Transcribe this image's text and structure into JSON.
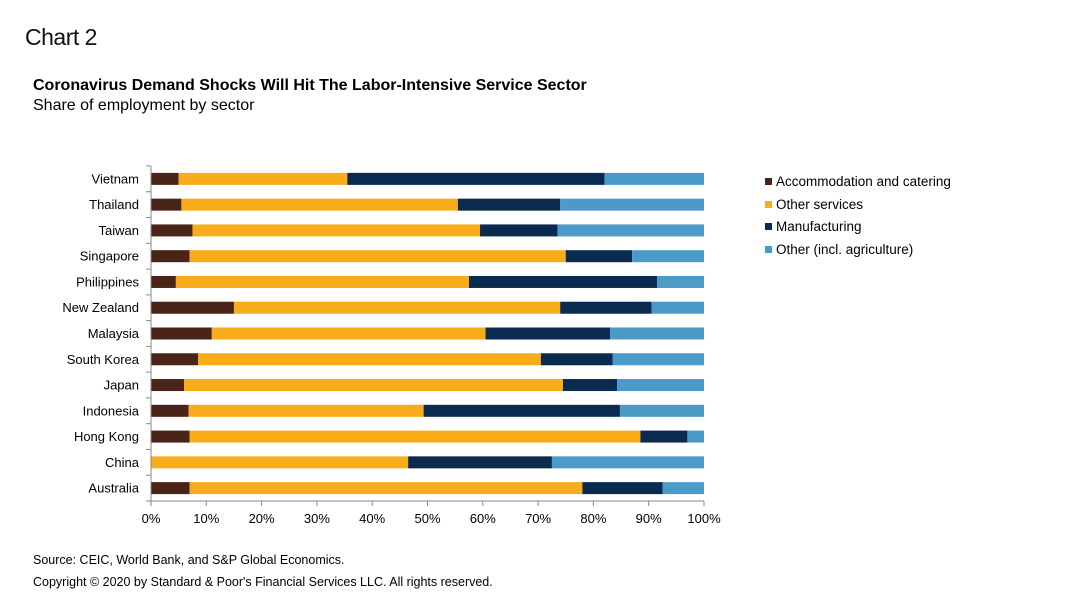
{
  "header": {
    "chart_label": "Chart 2",
    "title": "Coronavirus Demand Shocks Will Hit The Labor-Intensive Service Sector",
    "subtitle": "Share of employment by sector"
  },
  "footer": {
    "source": "Source: CEIC, World Bank, and S&P Global Economics.",
    "copyright": "Copyright © 2020 by Standard & Poor's Financial Services LLC. All rights reserved."
  },
  "legend": [
    {
      "label": "Accommodation and catering",
      "color": "#4a2418"
    },
    {
      "label": "Other services",
      "color": "#f8ac1c"
    },
    {
      "label": "Manufacturing",
      "color": "#0b2a50"
    },
    {
      "label": "Other (incl. agriculture)",
      "color": "#4b9ac8"
    }
  ],
  "chart_data": {
    "type": "bar",
    "orientation": "horizontal",
    "stacked": true,
    "title": "Coronavirus Demand Shocks Will Hit The Labor-Intensive Service Sector",
    "subtitle": "Share of employment by sector",
    "xlabel": "",
    "ylabel": "",
    "xlim": [
      0,
      100
    ],
    "x_ticks": [
      "0%",
      "10%",
      "20%",
      "30%",
      "40%",
      "50%",
      "60%",
      "70%",
      "80%",
      "90%",
      "100%"
    ],
    "categories": [
      "Vietnam",
      "Thailand",
      "Taiwan",
      "Singapore",
      "Philippines",
      "New Zealand",
      "Malaysia",
      "South Korea",
      "Japan",
      "Indonesia",
      "Hong Kong",
      "China",
      "Australia"
    ],
    "series": [
      {
        "name": "Accommodation and catering",
        "color": "#4a2418",
        "values": [
          5.0,
          5.5,
          7.5,
          7.0,
          4.5,
          15.0,
          11.0,
          8.5,
          6.0,
          6.8,
          7.0,
          0.0,
          7.0
        ]
      },
      {
        "name": "Other services",
        "color": "#f8ac1c",
        "values": [
          30.5,
          50.0,
          52.0,
          68.0,
          53.0,
          59.0,
          49.5,
          62.0,
          68.5,
          42.5,
          81.5,
          46.5,
          71.0
        ]
      },
      {
        "name": "Manufacturing",
        "color": "#0b2a50",
        "values": [
          46.5,
          18.5,
          14.0,
          12.0,
          34.0,
          16.5,
          22.5,
          13.0,
          9.8,
          35.5,
          8.5,
          26.0,
          14.5
        ]
      },
      {
        "name": "Other (incl. agriculture)",
        "color": "#4b9ac8",
        "values": [
          18.0,
          26.0,
          26.5,
          13.0,
          8.5,
          9.5,
          17.0,
          16.5,
          15.7,
          15.2,
          3.0,
          27.5,
          7.5
        ]
      }
    ],
    "grid": false,
    "legend_position": "right"
  }
}
